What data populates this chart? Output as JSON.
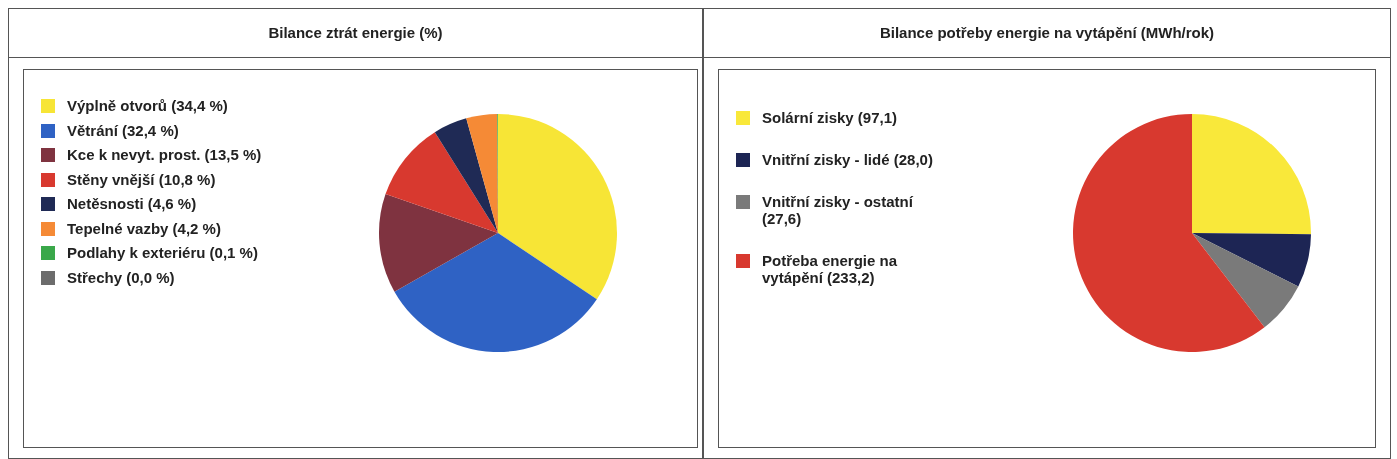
{
  "chart_data": [
    {
      "type": "pie",
      "title": "Bilance ztrát energie (%)",
      "legend": "left",
      "categories": [
        "Výplně otvorů (34,4 %)",
        "Větrání (32,4 %)",
        "Kce k nevyt. prost. (13,5 %)",
        "Stěny vnější (10,8 %)",
        "Netěsnosti (4,6 %)",
        "Tepelné vazby (4,2 %)",
        "Podlahy k exteriéru (0,1 %)",
        "Střechy (0,0 %)"
      ],
      "values": [
        34.4,
        32.4,
        13.5,
        10.8,
        4.6,
        4.2,
        0.1,
        0.0
      ],
      "colors": [
        "#f7e536",
        "#2f62c4",
        "#7f3340",
        "#d8392f",
        "#1f2a55",
        "#f58a36",
        "#3aa84a",
        "#6c6c6c"
      ]
    },
    {
      "type": "pie",
      "title": "Bilance potřeby energie na vytápění (MWh/rok)",
      "legend": "left",
      "categories": [
        "Solární zisky (97,1)",
        "Vnitřní zisky - lidé (28,0)",
        "Vnitřní zisky - ostatní (27,6)",
        "Potřeba energie na vytápění (233,2)"
      ],
      "values": [
        97.1,
        28.0,
        27.6,
        233.2
      ],
      "colors": [
        "#f9e83a",
        "#1d2554",
        "#7a7a7a",
        "#d8392f"
      ]
    }
  ]
}
